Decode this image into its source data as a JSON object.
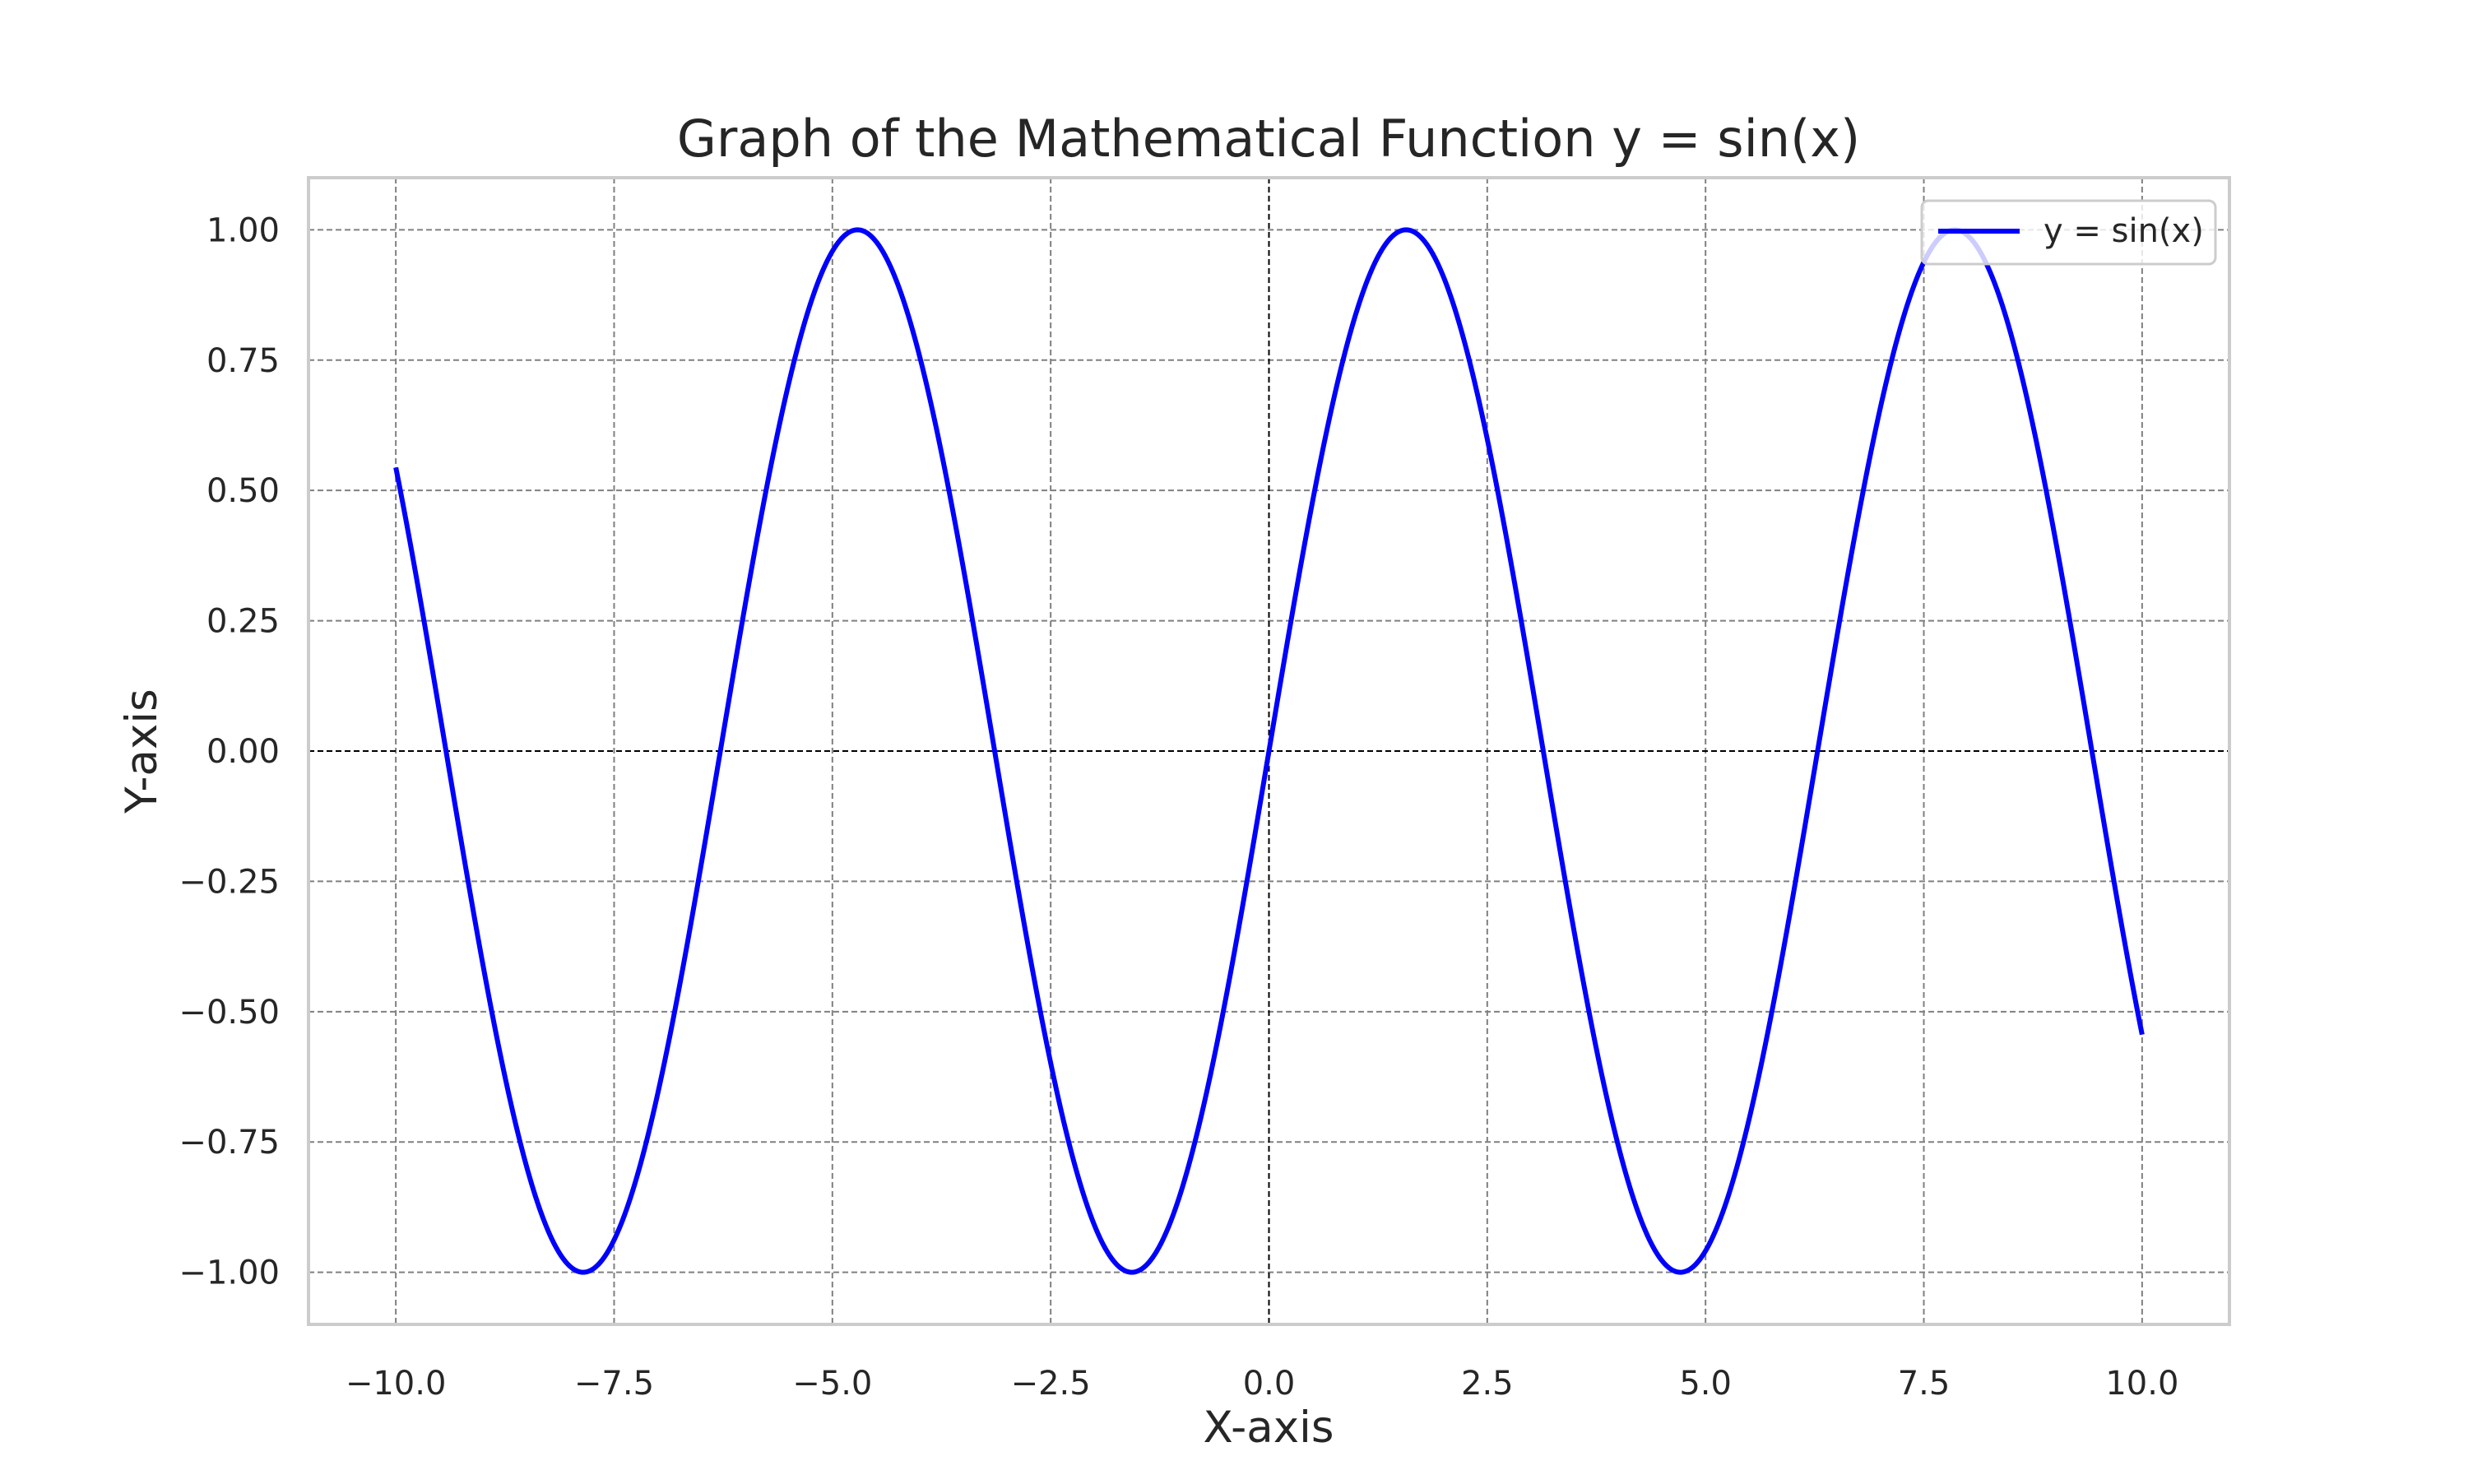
{
  "chart_data": {
    "type": "line",
    "title": "Graph of the Mathematical Function y = sin(x)",
    "xlabel": "X-axis",
    "ylabel": "Y-axis",
    "xlim": [
      -11.0,
      11.0
    ],
    "ylim": [
      -1.1,
      1.1
    ],
    "grid": true,
    "grid_style": "dashed",
    "legend_position": "upper right",
    "function": "sin",
    "x_range": [
      -10.0,
      10.0
    ],
    "sample_count": 1000,
    "series": [
      {
        "name": "y = sin(x)",
        "color": "#0000ff",
        "x": [
          -10.0,
          -9.0,
          -8.0,
          -7.854,
          -7.0,
          -6.0,
          -5.0,
          -4.712,
          -4.0,
          -3.0,
          -2.0,
          -1.571,
          -1.0,
          0.0,
          1.0,
          1.571,
          2.0,
          3.0,
          4.0,
          4.712,
          5.0,
          6.0,
          7.0,
          7.854,
          8.0,
          9.0,
          10.0
        ],
        "y": [
          0.544,
          -0.412,
          -0.989,
          -1.0,
          -0.657,
          0.279,
          0.959,
          1.0,
          0.757,
          -0.141,
          -0.909,
          -1.0,
          -0.841,
          0.0,
          0.841,
          1.0,
          0.909,
          0.141,
          -0.757,
          -1.0,
          -0.959,
          -0.279,
          0.657,
          1.0,
          0.989,
          0.412,
          -0.544
        ]
      }
    ],
    "xticks": [
      -10.0,
      -7.5,
      -5.0,
      -2.5,
      0.0,
      2.5,
      5.0,
      7.5,
      10.0
    ],
    "xtick_labels": [
      "−10.0",
      "−7.5",
      "−5.0",
      "−2.5",
      "0.0",
      "2.5",
      "5.0",
      "7.5",
      "10.0"
    ],
    "yticks": [
      -1.0,
      -0.75,
      -0.5,
      -0.25,
      0.0,
      0.25,
      0.5,
      0.75,
      1.0
    ],
    "ytick_labels": [
      "−1.00",
      "−0.75",
      "−0.50",
      "−0.25",
      "0.00",
      "0.25",
      "0.50",
      "0.75",
      "1.00"
    ],
    "reference_lines": {
      "x": 0.0,
      "y": 0.0,
      "color": "#000000"
    },
    "colors": {
      "grid": "#808080",
      "frame": "#cccccc",
      "text": "#262626"
    }
  }
}
